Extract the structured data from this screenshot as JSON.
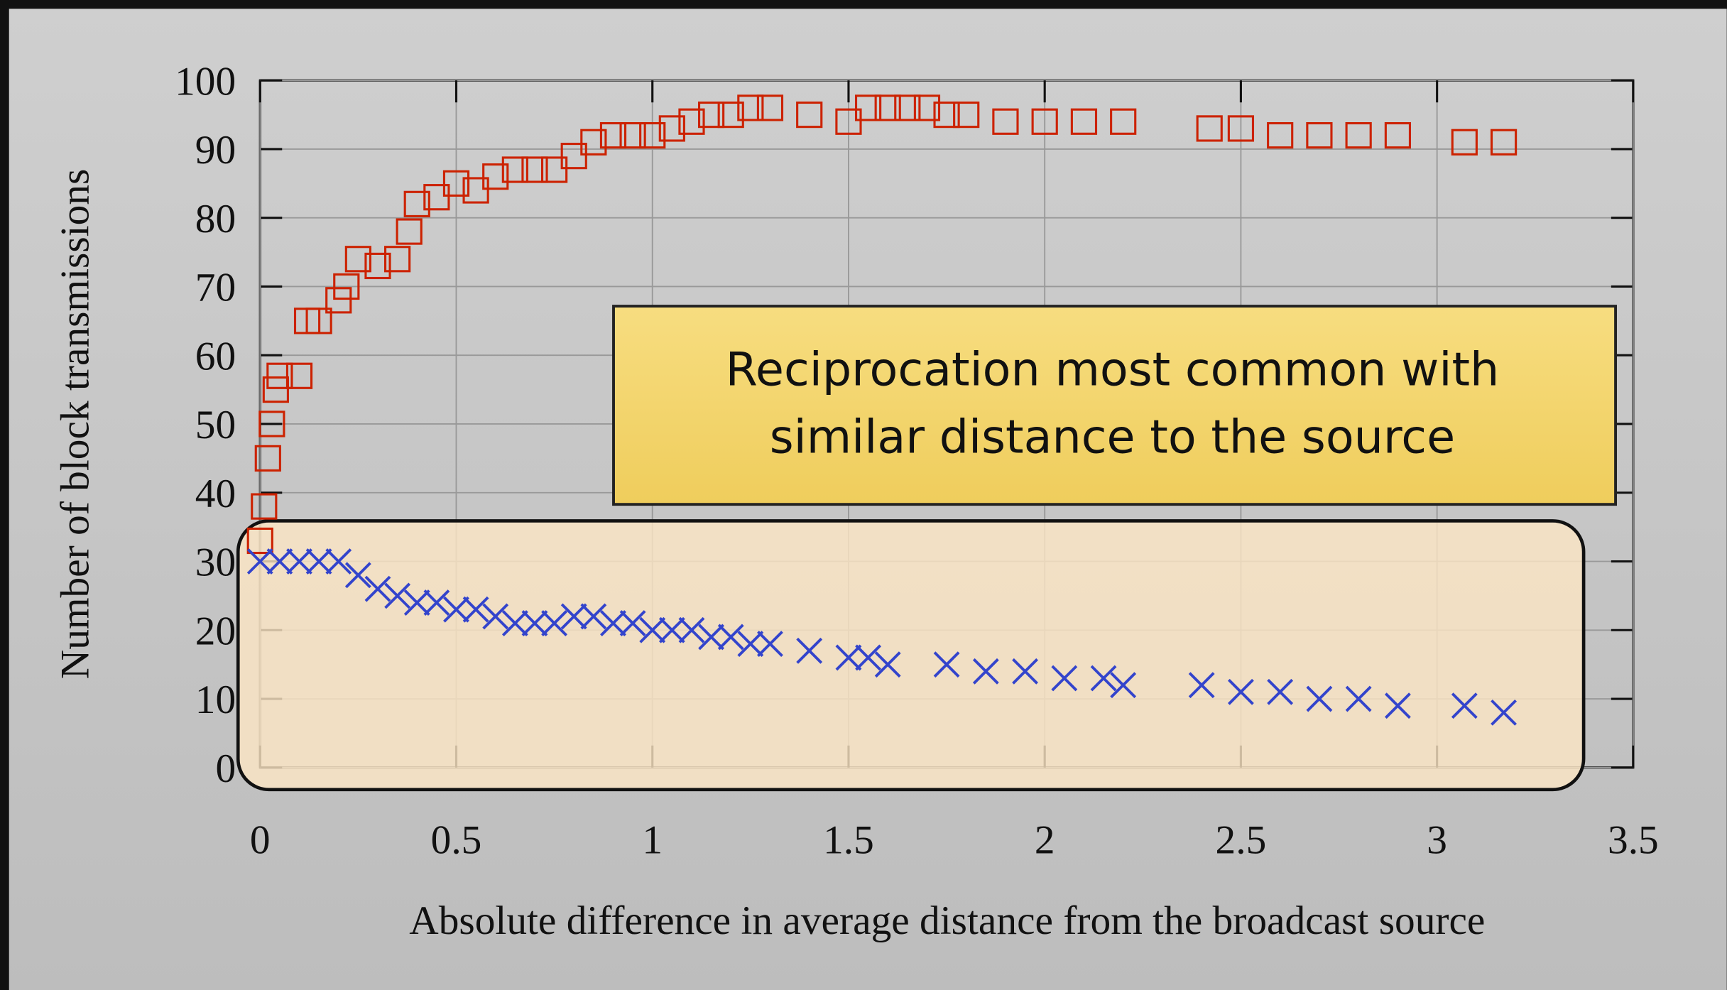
{
  "chart_data": {
    "type": "scatter",
    "xlabel": "Absolute difference in average distance from the broadcast source",
    "ylabel": "Number of block transmissions",
    "annotation": [
      "Reciprocation most common with",
      "similar distance to the source"
    ],
    "xlim": [
      0,
      3.5
    ],
    "xticks": [
      0,
      0.5,
      1,
      1.5,
      2,
      2.5,
      3,
      3.5
    ],
    "ylim": [
      0,
      100
    ],
    "yticks": [
      0,
      10,
      20,
      30,
      40,
      50,
      60,
      70,
      80,
      90,
      100
    ],
    "grid": true,
    "series": [
      {
        "color": "#cc2200",
        "marker": "square",
        "x": [
          0,
          0.01,
          0.02,
          0.03,
          0.04,
          0.05,
          0.1,
          0.12,
          0.15,
          0.2,
          0.22,
          0.25,
          0.3,
          0.35,
          0.38,
          0.4,
          0.45,
          0.5,
          0.55,
          0.6,
          0.65,
          0.7,
          0.75,
          0.8,
          0.85,
          0.9,
          0.95,
          1.0,
          1.05,
          1.1,
          1.15,
          1.2,
          1.25,
          1.3,
          1.4,
          1.5,
          1.55,
          1.6,
          1.65,
          1.7,
          1.75,
          1.8,
          1.9,
          2.0,
          2.1,
          2.2,
          2.42,
          2.5,
          2.6,
          2.7,
          2.8,
          2.9,
          3.07,
          3.17
        ],
        "values": [
          33,
          38,
          45,
          50,
          55,
          57,
          57,
          65,
          65,
          68,
          70,
          74,
          73,
          74,
          78,
          82,
          83,
          85,
          84,
          86,
          87,
          87,
          87,
          89,
          91,
          92,
          92,
          92,
          93,
          94,
          95,
          95,
          96,
          96,
          95,
          94,
          96,
          96,
          96,
          96,
          95,
          95,
          94,
          94,
          94,
          94,
          93,
          93,
          92,
          92,
          92,
          92,
          91,
          91
        ]
      },
      {
        "color": "#3344cc",
        "marker": "x",
        "x": [
          0,
          0.05,
          0.1,
          0.15,
          0.2,
          0.25,
          0.3,
          0.35,
          0.4,
          0.45,
          0.5,
          0.55,
          0.6,
          0.65,
          0.7,
          0.75,
          0.8,
          0.85,
          0.9,
          0.95,
          1.0,
          1.05,
          1.1,
          1.15,
          1.2,
          1.25,
          1.3,
          1.4,
          1.5,
          1.55,
          1.6,
          1.75,
          1.85,
          1.95,
          2.05,
          2.15,
          2.2,
          2.4,
          2.5,
          2.6,
          2.7,
          2.8,
          2.9,
          3.07,
          3.17
        ],
        "values": [
          30,
          30,
          30,
          30,
          30,
          28,
          26,
          25,
          24,
          24,
          23,
          23,
          22,
          21,
          21,
          21,
          22,
          22,
          21,
          21,
          20,
          20,
          20,
          19,
          19,
          18,
          18,
          17,
          16,
          16,
          15,
          15,
          14,
          14,
          13,
          13,
          12,
          12,
          11,
          11,
          10,
          10,
          9,
          9,
          8
        ]
      }
    ]
  }
}
